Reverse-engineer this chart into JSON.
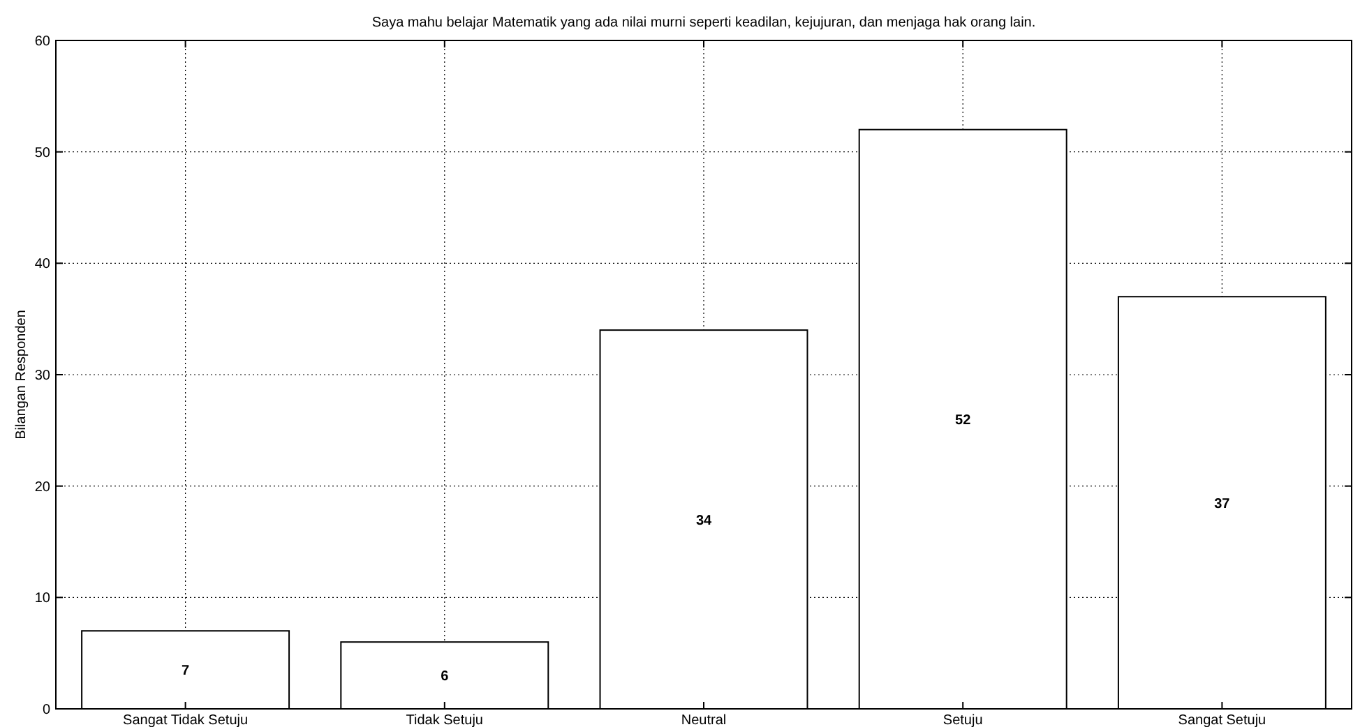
{
  "chart_data": {
    "type": "bar",
    "title": "Saya mahu belajar Matematik yang ada nilai murni seperti keadilan, kejujuran, dan menjaga hak orang lain.",
    "ylabel": "Bilangan Responden",
    "categories": [
      "Sangat Tidak Setuju",
      "Tidak Setuju",
      "Neutral",
      "Setuju",
      "Sangat Setuju"
    ],
    "values": [
      7,
      6,
      34,
      52,
      37
    ],
    "color": "#ffffff",
    "ylim": [
      0,
      60
    ],
    "yticks": [
      0,
      10,
      20,
      30,
      40,
      50,
      60
    ],
    "grid": true,
    "data_labels": true
  }
}
